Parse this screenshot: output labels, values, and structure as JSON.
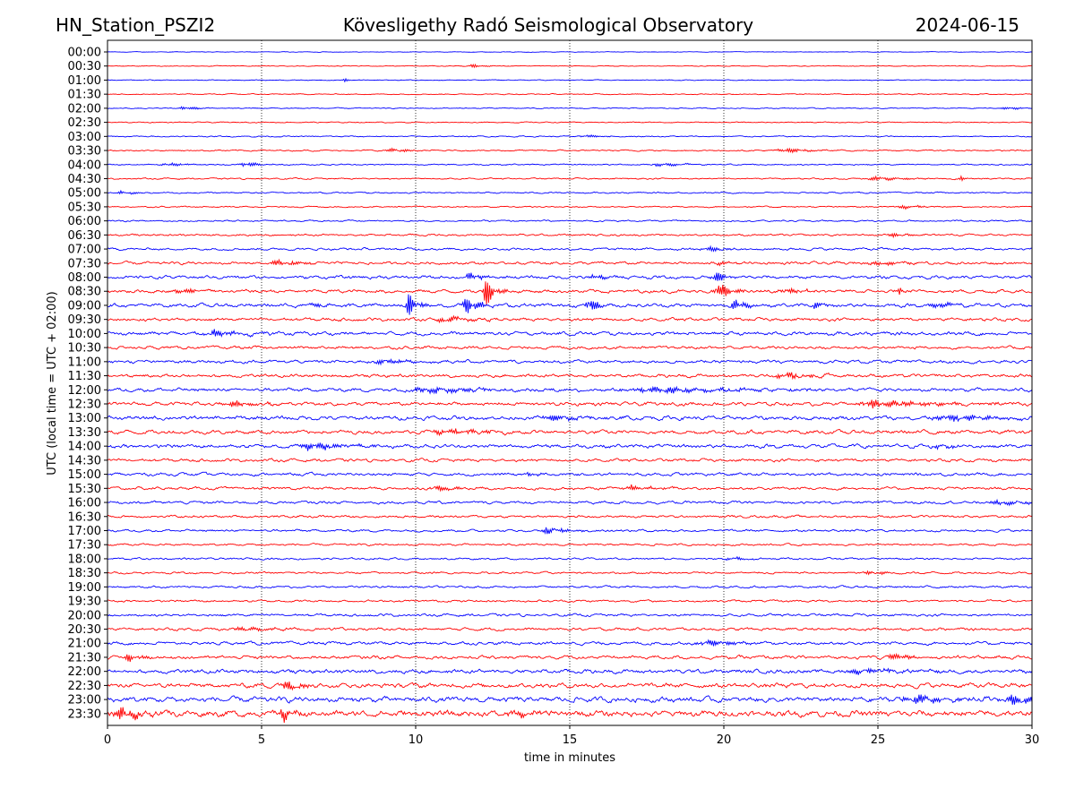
{
  "chart_data": {
    "type": "line",
    "title_left": "HN_Station_PSZI2",
    "title_center": "Kövesligethy Radó Seismological Observatory",
    "title_right": "2024-06-15",
    "xlabel": "time in minutes",
    "ylabel": "UTC (local time = UTC + 02:00)",
    "xlim": [
      0,
      30
    ],
    "x_ticks": [
      0,
      5,
      10,
      15,
      20,
      25,
      30
    ],
    "gridlines_x": [
      5,
      10,
      15,
      20,
      25
    ],
    "row_colors": [
      "#0000ff",
      "#ff0000"
    ],
    "row_labels": [
      "00:00",
      "00:30",
      "01:00",
      "01:30",
      "02:00",
      "02:30",
      "03:00",
      "03:30",
      "04:00",
      "04:30",
      "05:00",
      "05:30",
      "06:00",
      "06:30",
      "07:00",
      "07:30",
      "08:00",
      "08:30",
      "09:00",
      "09:30",
      "10:00",
      "10:30",
      "11:00",
      "11:30",
      "12:00",
      "12:30",
      "13:00",
      "13:30",
      "14:00",
      "14:30",
      "15:00",
      "15:30",
      "16:00",
      "16:30",
      "17:00",
      "17:30",
      "18:00",
      "18:30",
      "19:00",
      "19:30",
      "20:00",
      "20:30",
      "21:00",
      "21:30",
      "22:00",
      "22:30",
      "23:00",
      "23:30"
    ],
    "noise_levels": [
      0.3,
      0.4,
      0.4,
      0.5,
      0.5,
      0.5,
      0.6,
      0.7,
      0.7,
      0.7,
      0.7,
      0.7,
      0.8,
      1.0,
      1.2,
      1.4,
      1.6,
      1.7,
      1.8,
      1.6,
      1.8,
      1.5,
      1.6,
      1.6,
      1.8,
      1.8,
      2.0,
      1.9,
      1.9,
      1.5,
      1.5,
      1.4,
      1.4,
      1.2,
      1.2,
      1.0,
      1.0,
      1.0,
      1.1,
      1.1,
      1.3,
      1.4,
      1.6,
      1.7,
      2.0,
      2.3,
      2.6,
      3.0
    ],
    "events": [
      {
        "row": 1,
        "t": 11.9,
        "amp": 2,
        "dur": 0.3
      },
      {
        "row": 2,
        "t": 7.7,
        "amp": 2,
        "dur": 0.1
      },
      {
        "row": 4,
        "t": 2.5,
        "amp": 2,
        "dur": 0.4
      },
      {
        "row": 4,
        "t": 29.2,
        "amp": 2,
        "dur": 0.4
      },
      {
        "row": 6,
        "t": 15.5,
        "amp": 2,
        "dur": 0.4
      },
      {
        "row": 7,
        "t": 9.3,
        "amp": 2,
        "dur": 0.5
      },
      {
        "row": 7,
        "t": 22.0,
        "amp": 3,
        "dur": 0.6
      },
      {
        "row": 8,
        "t": 2.0,
        "amp": 2,
        "dur": 0.6
      },
      {
        "row": 8,
        "t": 4.5,
        "amp": 3,
        "dur": 0.4
      },
      {
        "row": 8,
        "t": 18.0,
        "amp": 2,
        "dur": 0.6
      },
      {
        "row": 9,
        "t": 25.0,
        "amp": 2,
        "dur": 0.8
      },
      {
        "row": 9,
        "t": 27.7,
        "amp": 3,
        "dur": 0.1
      },
      {
        "row": 10,
        "t": 0.5,
        "amp": 2,
        "dur": 0.4
      },
      {
        "row": 11,
        "t": 25.8,
        "amp": 2,
        "dur": 0.6
      },
      {
        "row": 13,
        "t": 25.5,
        "amp": 2,
        "dur": 0.5
      },
      {
        "row": 14,
        "t": 19.5,
        "amp": 2,
        "dur": 0.6
      },
      {
        "row": 15,
        "t": 5.5,
        "amp": 2.5,
        "dur": 0.8
      },
      {
        "row": 15,
        "t": 19.8,
        "amp": 3,
        "dur": 0.3
      },
      {
        "row": 15,
        "t": 25.0,
        "amp": 2,
        "dur": 0.7
      },
      {
        "row": 16,
        "t": 11.8,
        "amp": 5,
        "dur": 0.3
      },
      {
        "row": 16,
        "t": 15.8,
        "amp": 3,
        "dur": 0.4
      },
      {
        "row": 16,
        "t": 19.7,
        "amp": 9,
        "dur": 0.25
      },
      {
        "row": 17,
        "t": 2.4,
        "amp": 3,
        "dur": 0.6
      },
      {
        "row": 17,
        "t": 12.3,
        "amp": 16,
        "dur": 0.25
      },
      {
        "row": 17,
        "t": 19.8,
        "amp": 12,
        "dur": 0.3
      },
      {
        "row": 17,
        "t": 22.0,
        "amp": 2.5,
        "dur": 0.6
      },
      {
        "row": 17,
        "t": 25.7,
        "amp": 5,
        "dur": 0.08
      },
      {
        "row": 18,
        "t": 6.5,
        "amp": 2,
        "dur": 0.8
      },
      {
        "row": 18,
        "t": 9.8,
        "amp": 16,
        "dur": 0.2
      },
      {
        "row": 18,
        "t": 11.7,
        "amp": 12,
        "dur": 0.3
      },
      {
        "row": 18,
        "t": 15.6,
        "amp": 14,
        "dur": 0.2
      },
      {
        "row": 18,
        "t": 20.4,
        "amp": 8,
        "dur": 0.3
      },
      {
        "row": 18,
        "t": 23.0,
        "amp": 4,
        "dur": 0.2
      },
      {
        "row": 18,
        "t": 26.9,
        "amp": 4,
        "dur": 0.4
      },
      {
        "row": 19,
        "t": 11.0,
        "amp": 3,
        "dur": 0.7
      },
      {
        "row": 20,
        "t": 3.5,
        "amp": 3,
        "dur": 0.8
      },
      {
        "row": 22,
        "t": 9.0,
        "amp": 3,
        "dur": 0.7
      },
      {
        "row": 23,
        "t": 22.0,
        "amp": 3,
        "dur": 0.8
      },
      {
        "row": 24,
        "t": 10.5,
        "amp": 3,
        "dur": 1.5
      },
      {
        "row": 24,
        "t": 18.0,
        "amp": 3,
        "dur": 2.5
      },
      {
        "row": 25,
        "t": 4.0,
        "amp": 3,
        "dur": 0.8
      },
      {
        "row": 25,
        "t": 25.0,
        "amp": 4,
        "dur": 1.5
      },
      {
        "row": 26,
        "t": 14.5,
        "amp": 3,
        "dur": 0.8
      },
      {
        "row": 26,
        "t": 27.5,
        "amp": 3,
        "dur": 1.5
      },
      {
        "row": 27,
        "t": 11.0,
        "amp": 3,
        "dur": 1.0
      },
      {
        "row": 28,
        "t": 6.7,
        "amp": 5,
        "dur": 0.8
      },
      {
        "row": 28,
        "t": 27.0,
        "amp": 3,
        "dur": 0.4
      },
      {
        "row": 30,
        "t": 13.7,
        "amp": 3,
        "dur": 0.2
      },
      {
        "row": 31,
        "t": 10.7,
        "amp": 3,
        "dur": 0.5
      },
      {
        "row": 31,
        "t": 17.0,
        "amp": 3,
        "dur": 0.6
      },
      {
        "row": 32,
        "t": 29.0,
        "amp": 2,
        "dur": 1.0
      },
      {
        "row": 34,
        "t": 14.3,
        "amp": 3,
        "dur": 0.7
      },
      {
        "row": 36,
        "t": 20.2,
        "amp": 2,
        "dur": 0.4
      },
      {
        "row": 37,
        "t": 24.8,
        "amp": 2,
        "dur": 0.5
      },
      {
        "row": 41,
        "t": 4.5,
        "amp": 2,
        "dur": 1.0
      },
      {
        "row": 42,
        "t": 19.5,
        "amp": 3,
        "dur": 0.8
      },
      {
        "row": 43,
        "t": 0.7,
        "amp": 5,
        "dur": 0.3
      },
      {
        "row": 43,
        "t": 25.5,
        "amp": 3,
        "dur": 0.8
      },
      {
        "row": 44,
        "t": 24.5,
        "amp": 3,
        "dur": 1.0
      },
      {
        "row": 45,
        "t": 5.8,
        "amp": 5,
        "dur": 0.5
      },
      {
        "row": 46,
        "t": 26.2,
        "amp": 5,
        "dur": 0.8
      },
      {
        "row": 46,
        "t": 29.5,
        "amp": 6,
        "dur": 0.6
      },
      {
        "row": 47,
        "t": 0.5,
        "amp": 7,
        "dur": 0.5
      },
      {
        "row": 47,
        "t": 5.7,
        "amp": 6,
        "dur": 0.3
      },
      {
        "row": 47,
        "t": 13.2,
        "amp": 4,
        "dur": 0.5
      }
    ]
  }
}
